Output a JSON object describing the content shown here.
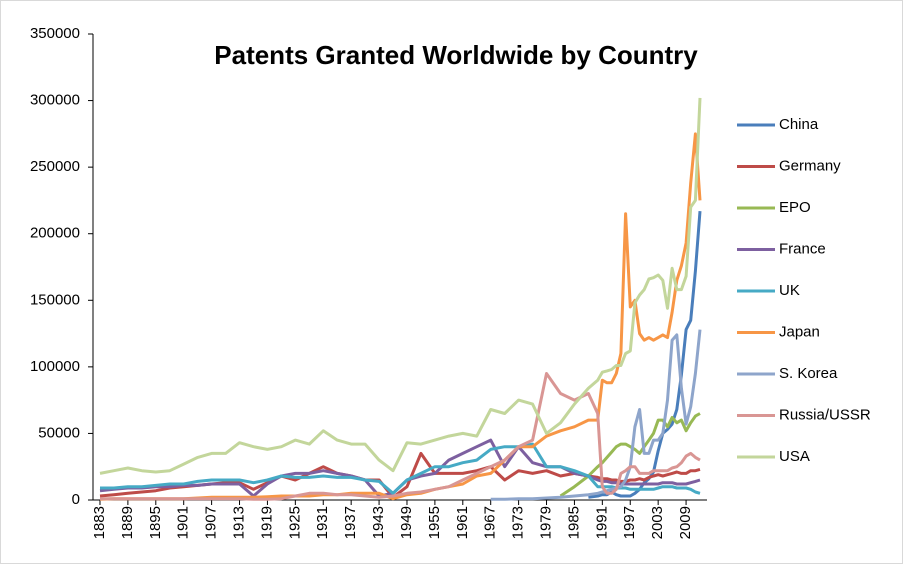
{
  "chart_data": {
    "type": "line",
    "title": "Patents Granted Worldwide by Country",
    "x": [
      1883,
      1886,
      1889,
      1892,
      1895,
      1898,
      1901,
      1904,
      1907,
      1910,
      1913,
      1916,
      1919,
      1922,
      1925,
      1928,
      1931,
      1934,
      1937,
      1940,
      1943,
      1946,
      1949,
      1952,
      1955,
      1958,
      1961,
      1964,
      1967,
      1970,
      1973,
      1976,
      1979,
      1982,
      1985,
      1988,
      1990,
      1991,
      1992,
      1993,
      1994,
      1995,
      1996,
      1997,
      1998,
      1999,
      2000,
      2001,
      2002,
      2003,
      2004,
      2005,
      2006,
      2007,
      2008,
      2009,
      2010,
      2011,
      2012
    ],
    "xlim": [
      1881.5,
      2013.5
    ],
    "xticks": [
      1883,
      1889,
      1895,
      1901,
      1907,
      1913,
      1919,
      1925,
      1931,
      1937,
      1943,
      1949,
      1955,
      1961,
      1967,
      1973,
      1979,
      1985,
      1991,
      1997,
      2003,
      2009
    ],
    "ylim": [
      0,
      350000
    ],
    "yticks": [
      0,
      50000,
      100000,
      150000,
      200000,
      250000,
      300000,
      350000
    ],
    "grid": false,
    "legend": "right",
    "series": [
      {
        "name": "China",
        "color": "#4a7ebb",
        "values": [
          null,
          null,
          null,
          null,
          null,
          null,
          null,
          null,
          null,
          null,
          null,
          null,
          null,
          null,
          null,
          null,
          null,
          null,
          null,
          null,
          null,
          null,
          null,
          null,
          null,
          null,
          null,
          null,
          null,
          null,
          null,
          null,
          null,
          null,
          null,
          2000,
          3000,
          4000,
          4000,
          6000,
          4000,
          3000,
          3000,
          3000,
          5000,
          8000,
          13000,
          16000,
          21000,
          37000,
          50000,
          53000,
          57000,
          68000,
          94000,
          128000,
          135000,
          172000,
          217000
        ]
      },
      {
        "name": "Germany",
        "color": "#be4b48",
        "values": [
          3000,
          4000,
          5000,
          6000,
          7000,
          9000,
          10000,
          11000,
          12000,
          13000,
          13000,
          8000,
          13000,
          18000,
          15000,
          20000,
          25000,
          20000,
          18000,
          15000,
          15000,
          2000,
          10000,
          35000,
          20000,
          20000,
          20000,
          22000,
          25000,
          15000,
          22000,
          20000,
          22000,
          18000,
          20000,
          18000,
          17000,
          16000,
          16000,
          15000,
          15000,
          14000,
          14000,
          15000,
          15000,
          16000,
          15000,
          17000,
          18000,
          19000,
          18000,
          19000,
          20000,
          21000,
          20000,
          20000,
          22000,
          22000,
          23000
        ]
      },
      {
        "name": "EPO",
        "color": "#98b954",
        "values": [
          null,
          null,
          null,
          null,
          null,
          null,
          null,
          null,
          null,
          null,
          null,
          null,
          null,
          null,
          null,
          null,
          null,
          null,
          null,
          null,
          null,
          null,
          null,
          null,
          null,
          null,
          null,
          null,
          null,
          null,
          null,
          null,
          null,
          3000,
          10000,
          18000,
          25000,
          28000,
          32000,
          36000,
          40000,
          42000,
          42000,
          40000,
          38000,
          35000,
          40000,
          45000,
          50000,
          60000,
          60000,
          55000,
          62000,
          58000,
          60000,
          52000,
          58000,
          63000,
          65000
        ]
      },
      {
        "name": "France",
        "color": "#7d60a0",
        "values": [
          7000,
          8000,
          9000,
          9000,
          10000,
          10000,
          11000,
          11000,
          12000,
          12000,
          12000,
          3000,
          12000,
          18000,
          20000,
          20000,
          22000,
          20000,
          18000,
          15000,
          3000,
          5000,
          15000,
          18000,
          20000,
          30000,
          35000,
          40000,
          45000,
          25000,
          40000,
          28000,
          25000,
          25000,
          20000,
          18000,
          15000,
          14000,
          14000,
          13000,
          13000,
          12000,
          12000,
          12000,
          12000,
          12000,
          12000,
          12000,
          12000,
          12000,
          13000,
          13000,
          13000,
          12000,
          12000,
          12000,
          13000,
          14000,
          15000
        ]
      },
      {
        "name": "UK",
        "color": "#46aac5",
        "values": [
          9000,
          9000,
          10000,
          10000,
          11000,
          12000,
          12000,
          14000,
          15000,
          15000,
          15000,
          13000,
          15000,
          18000,
          17000,
          17000,
          18000,
          17000,
          17000,
          15000,
          14000,
          5000,
          15000,
          20000,
          25000,
          25000,
          28000,
          30000,
          38000,
          40000,
          40000,
          42000,
          25000,
          25000,
          22000,
          18000,
          10000,
          10000,
          10000,
          10000,
          9000,
          9000,
          9000,
          8000,
          8000,
          8000,
          8000,
          8000,
          8000,
          9000,
          10000,
          10000,
          10000,
          9000,
          9000,
          9000,
          8000,
          6000,
          5000
        ]
      },
      {
        "name": "Japan",
        "color": "#f79646",
        "values": [
          500,
          1000,
          1000,
          1000,
          1000,
          1000,
          1000,
          1500,
          2000,
          2000,
          2000,
          2000,
          2500,
          3000,
          3000,
          3000,
          4000,
          4000,
          5000,
          5000,
          5000,
          1000,
          4000,
          5000,
          8000,
          10000,
          12000,
          18000,
          20000,
          30000,
          40000,
          40000,
          48000,
          52000,
          55000,
          60000,
          60000,
          90000,
          88000,
          88000,
          95000,
          110000,
          215000,
          145000,
          150000,
          125000,
          120000,
          122000,
          120000,
          122000,
          124000,
          122000,
          141000,
          165000,
          176000,
          193000,
          238000,
          275000,
          225000
        ]
      },
      {
        "name": "S. Korea",
        "color": "#8ea5cb",
        "values": [
          null,
          null,
          null,
          null,
          null,
          null,
          null,
          null,
          null,
          null,
          null,
          null,
          null,
          null,
          null,
          null,
          null,
          null,
          null,
          null,
          null,
          null,
          null,
          null,
          null,
          null,
          null,
          null,
          500,
          500,
          1000,
          1000,
          1500,
          2000,
          3000,
          4000,
          5000,
          6000,
          7000,
          8000,
          9000,
          10000,
          15000,
          25000,
          55000,
          68000,
          35000,
          35000,
          45000,
          45000,
          50000,
          75000,
          120000,
          124000,
          84000,
          57000,
          70000,
          95000,
          128000
        ]
      },
      {
        "name": "Russia/USSR",
        "color": "#d99694",
        "values": [
          1000,
          1000,
          1000,
          1000,
          1000,
          1000,
          1000,
          1000,
          1000,
          1000,
          1000,
          500,
          500,
          1000,
          3000,
          5000,
          5000,
          4000,
          4000,
          3000,
          2000,
          3000,
          5000,
          6000,
          8000,
          10000,
          15000,
          20000,
          25000,
          30000,
          40000,
          45000,
          95000,
          80000,
          75000,
          80000,
          65000,
          10000,
          5000,
          5000,
          8000,
          20000,
          22000,
          25000,
          25000,
          20000,
          20000,
          20000,
          22000,
          22000,
          22000,
          22000,
          24000,
          25000,
          28000,
          33000,
          35000,
          32000,
          30000
        ]
      },
      {
        "name": "USA",
        "color": "#c3d69b",
        "values": [
          20000,
          22000,
          24000,
          22000,
          21000,
          22000,
          27000,
          32000,
          35000,
          35000,
          43000,
          40000,
          38000,
          40000,
          45000,
          42000,
          52000,
          45000,
          42000,
          42000,
          30000,
          22000,
          43000,
          42000,
          45000,
          48000,
          50000,
          48000,
          68000,
          65000,
          75000,
          72000,
          50000,
          58000,
          72000,
          84000,
          90000,
          96000,
          97000,
          98000,
          101000,
          101000,
          110000,
          112000,
          148000,
          154000,
          158000,
          166000,
          167000,
          169000,
          165000,
          144000,
          174000,
          158000,
          158000,
          168000,
          220000,
          225000,
          302000
        ]
      }
    ]
  }
}
